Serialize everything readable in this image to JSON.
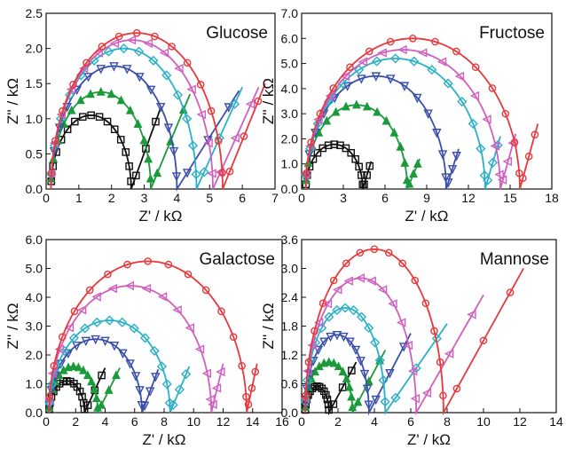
{
  "chart_data": [
    {
      "type": "scatter",
      "title": "Glucose",
      "xlabel": "Z' / kΩ",
      "ylabel": "Z'' / kΩ",
      "xlim": [
        0,
        7
      ],
      "ylim": [
        0,
        2.5
      ],
      "xticks": [
        "0",
        "1",
        "2",
        "3",
        "4",
        "5",
        "6",
        "7"
      ],
      "yticks": [
        "0.0",
        "0.5",
        "1.0",
        "1.5",
        "2.0",
        "2.5"
      ],
      "series": [
        {
          "color": "#111111",
          "marker": "square",
          "arc": [
            0.15,
            2.6,
            1.05
          ],
          "tail_end": [
            3.5,
            1.15
          ]
        },
        {
          "color": "#1a9a3a",
          "marker": "triangle-up",
          "arc": [
            0.15,
            3.2,
            1.38
          ],
          "tail_end": [
            4.4,
            1.35
          ]
        },
        {
          "color": "#3a4faa",
          "marker": "triangle-down",
          "arc": [
            0.15,
            4.0,
            1.75
          ],
          "tail_end": [
            5.9,
            1.4
          ]
        },
        {
          "color": "#2bb0c8",
          "marker": "diamond",
          "arc": [
            0.15,
            4.6,
            2.0
          ],
          "tail_end": [
            6.0,
            1.45
          ]
        },
        {
          "color": "#d060c0",
          "marker": "triangle-left",
          "arc": [
            0.15,
            5.1,
            2.12
          ],
          "tail_end": [
            6.5,
            1.45
          ]
        },
        {
          "color": "#e8383c",
          "marker": "circle",
          "arc": [
            0.15,
            5.4,
            2.22
          ],
          "tail_end": [
            6.7,
            1.5
          ]
        }
      ]
    },
    {
      "type": "scatter",
      "title": "Fructose",
      "xlabel": "Z' / kΩ",
      "ylabel": "Z'' / kΩ",
      "xlim": [
        0,
        18
      ],
      "ylim": [
        0,
        7
      ],
      "xticks": [
        "0",
        "3",
        "6",
        "9",
        "12",
        "15",
        "18"
      ],
      "yticks": [
        "0.0",
        "1.0",
        "2.0",
        "3.0",
        "4.0",
        "5.0",
        "6.0",
        "7.0"
      ],
      "series": [
        {
          "color": "#111111",
          "marker": "square",
          "arc": [
            0.3,
            4.4,
            1.78
          ],
          "tail_end": [
            5.0,
            1.1
          ]
        },
        {
          "color": "#1a9a3a",
          "marker": "triangle-up",
          "arc": [
            0.3,
            7.6,
            3.35
          ],
          "tail_end": [
            8.5,
            1.2
          ]
        },
        {
          "color": "#3a4faa",
          "marker": "triangle-down",
          "arc": [
            0.3,
            10.4,
            4.5
          ],
          "tail_end": [
            11.3,
            1.6
          ]
        },
        {
          "color": "#2bb0c8",
          "marker": "diamond",
          "arc": [
            0.3,
            13.2,
            5.2
          ],
          "tail_end": [
            14.3,
            2.1
          ]
        },
        {
          "color": "#d060c0",
          "marker": "triangle-left",
          "arc": [
            0.3,
            14.3,
            5.55
          ],
          "tail_end": [
            15.4,
            2.2
          ]
        },
        {
          "color": "#e8383c",
          "marker": "circle",
          "arc": [
            0.3,
            15.7,
            6.0
          ],
          "tail_end": [
            17.0,
            2.6
          ]
        }
      ]
    },
    {
      "type": "scatter",
      "title": "Galactose",
      "xlabel": "Z' / kΩ",
      "ylabel": "Z'' / kΩ",
      "xlim": [
        0,
        16
      ],
      "ylim": [
        0,
        6
      ],
      "xticks": [
        "0",
        "2",
        "4",
        "6",
        "8",
        "10",
        "12",
        "14",
        "16"
      ],
      "yticks": [
        "0.0",
        "1.0",
        "2.0",
        "3.0",
        "4.0",
        "5.0",
        "6.0"
      ],
      "series": [
        {
          "color": "#111111",
          "marker": "square",
          "arc": [
            0.2,
            2.6,
            1.1
          ],
          "tail_end": [
            4.0,
            1.55
          ]
        },
        {
          "color": "#1a9a3a",
          "marker": "triangle-up",
          "arc": [
            0.2,
            3.5,
            1.6
          ],
          "tail_end": [
            5.0,
            1.55
          ]
        },
        {
          "color": "#3a4faa",
          "marker": "triangle-down",
          "arc": [
            0.2,
            6.5,
            2.55
          ],
          "tail_end": [
            7.6,
            1.5
          ]
        },
        {
          "color": "#2bb0c8",
          "marker": "diamond",
          "arc": [
            0.2,
            8.4,
            3.2
          ],
          "tail_end": [
            9.7,
            1.6
          ]
        },
        {
          "color": "#d060c0",
          "marker": "triangle-left",
          "arc": [
            0.2,
            11.2,
            4.4
          ],
          "tail_end": [
            12.0,
            1.7
          ]
        },
        {
          "color": "#e8383c",
          "marker": "circle",
          "arc": [
            0.2,
            13.6,
            5.25
          ],
          "tail_end": [
            14.3,
            1.7
          ]
        }
      ]
    },
    {
      "type": "scatter",
      "title": "Mannose",
      "xlabel": "Z' / kΩ",
      "ylabel": "Z'' / kΩ",
      "xlim": [
        0,
        14
      ],
      "ylim": [
        0,
        3.6
      ],
      "xticks": [
        "0",
        "2",
        "4",
        "6",
        "8",
        "10",
        "12",
        "14"
      ],
      "yticks": [
        "0.0",
        "0.6",
        "1.2",
        "1.8",
        "2.4",
        "3.0",
        "3.6"
      ],
      "series": [
        {
          "color": "#111111",
          "marker": "square",
          "arc": [
            0.2,
            1.5,
            0.55
          ],
          "tail_end": [
            3.0,
            1.05
          ]
        },
        {
          "color": "#1a9a3a",
          "marker": "triangle-up",
          "arc": [
            0.2,
            2.8,
            1.05
          ],
          "tail_end": [
            4.6,
            1.3
          ]
        },
        {
          "color": "#3a4faa",
          "marker": "triangle-down",
          "arc": [
            0.2,
            3.7,
            1.62
          ],
          "tail_end": [
            6.0,
            1.65
          ]
        },
        {
          "color": "#2bb0c8",
          "marker": "diamond",
          "arc": [
            0.2,
            4.6,
            2.18
          ],
          "tail_end": [
            8.0,
            1.85
          ]
        },
        {
          "color": "#d060c0",
          "marker": "triangle-left",
          "arc": [
            0.2,
            6.3,
            2.8
          ],
          "tail_end": [
            10.0,
            2.45
          ]
        },
        {
          "color": "#e8383c",
          "marker": "circle",
          "arc": [
            0.2,
            7.8,
            3.4
          ],
          "tail_end": [
            12.2,
            3.0
          ]
        }
      ]
    }
  ]
}
